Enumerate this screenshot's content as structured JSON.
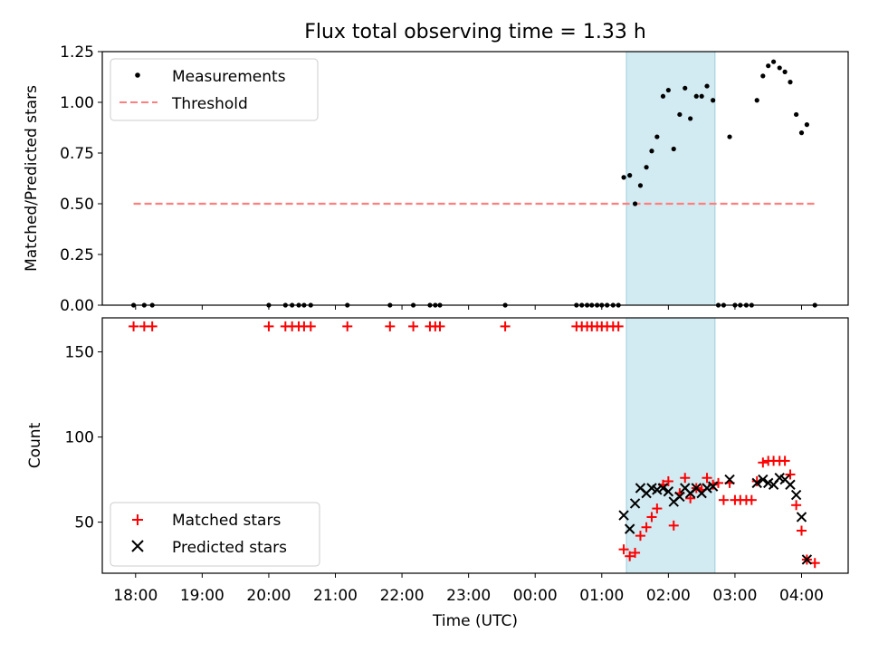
{
  "chart_data": [
    {
      "type": "scatter",
      "title": "Flux total observing time = 1.33 h",
      "xlabel": "",
      "ylabel": "Matched/Predicted stars",
      "ylim": [
        0,
        1.25
      ],
      "yticks": [
        "0.00",
        "0.25",
        "0.50",
        "0.75",
        "1.00",
        "1.25"
      ],
      "xlim_hours": [
        17.5,
        28.7
      ],
      "legend": {
        "placement": "top-left",
        "entries": [
          "Measurements",
          "Threshold"
        ]
      },
      "highlight_span_hours": [
        25.37,
        26.7
      ],
      "highlight_color": "#add8e6",
      "series": [
        {
          "name": "Measurements",
          "color": "#000000",
          "marker": "dot",
          "x": [
            17.97,
            18.13,
            18.25,
            20.0,
            20.25,
            20.35,
            20.45,
            20.53,
            20.63,
            21.18,
            21.82,
            22.17,
            22.42,
            22.5,
            22.57,
            23.55,
            24.62,
            24.7,
            24.78,
            24.85,
            24.93,
            25.0,
            25.08,
            25.17,
            25.25,
            25.33,
            25.42,
            25.5,
            25.58,
            25.67,
            25.75,
            25.83,
            25.92,
            26.0,
            26.08,
            26.17,
            26.25,
            26.33,
            26.42,
            26.5,
            26.58,
            26.67,
            26.75,
            26.83,
            26.92,
            27.0,
            27.08,
            27.17,
            27.25,
            27.33,
            27.42,
            27.5,
            27.58,
            27.67,
            27.75,
            27.83,
            27.92,
            28.0,
            28.08,
            28.2
          ],
          "y": [
            0,
            0,
            0,
            0,
            0,
            0,
            0,
            0,
            0,
            0,
            0,
            0,
            0,
            0,
            0,
            0,
            0,
            0,
            0,
            0,
            0,
            0,
            0,
            0,
            0,
            0.63,
            0.64,
            0.5,
            0.59,
            0.68,
            0.76,
            0.83,
            1.03,
            1.06,
            0.77,
            0.94,
            1.07,
            0.92,
            1.03,
            1.03,
            1.08,
            1.01,
            0,
            0,
            0.83,
            0,
            0,
            0,
            0,
            1.01,
            1.13,
            1.18,
            1.2,
            1.17,
            1.15,
            1.1,
            0.94,
            0.85,
            0.89,
            0
          ]
        },
        {
          "name": "Threshold",
          "color": "#ff7f7f",
          "style": "dashed",
          "x": [
            17.97,
            28.2
          ],
          "y": [
            0.5,
            0.5
          ]
        }
      ]
    },
    {
      "type": "scatter",
      "xlabel": "Time (UTC)",
      "ylabel": "Count",
      "ylim": [
        20,
        170
      ],
      "yticks": [
        "50",
        "100",
        "150"
      ],
      "xticks": [
        "18:00",
        "19:00",
        "20:00",
        "21:00",
        "22:00",
        "23:00",
        "00:00",
        "01:00",
        "02:00",
        "03:00",
        "04:00"
      ],
      "legend": {
        "placement": "bottom-left",
        "entries": [
          "Matched stars",
          "Predicted stars"
        ]
      },
      "highlight_span_hours": [
        25.37,
        26.7
      ],
      "series": [
        {
          "name": "Matched stars",
          "color": "#ff0000",
          "marker": "plus",
          "x": [
            17.97,
            18.13,
            18.25,
            20.0,
            20.25,
            20.35,
            20.45,
            20.53,
            20.63,
            21.18,
            21.82,
            22.17,
            22.42,
            22.5,
            22.57,
            23.55,
            24.62,
            24.7,
            24.78,
            24.85,
            24.93,
            25.0,
            25.08,
            25.17,
            25.25,
            25.33,
            25.42,
            25.5,
            25.58,
            25.67,
            25.75,
            25.83,
            25.92,
            26.0,
            26.08,
            26.17,
            26.25,
            26.33,
            26.42,
            26.5,
            26.58,
            26.67,
            26.75,
            26.83,
            26.92,
            27.0,
            27.08,
            27.17,
            27.25,
            27.33,
            27.42,
            27.5,
            27.58,
            27.67,
            27.75,
            27.83,
            27.92,
            28.0,
            28.08,
            28.2
          ],
          "y": [
            165,
            165,
            165,
            165,
            165,
            165,
            165,
            165,
            165,
            165,
            165,
            165,
            165,
            165,
            165,
            165,
            165,
            165,
            165,
            165,
            165,
            165,
            165,
            165,
            165,
            34,
            30,
            32,
            42,
            47,
            53,
            58,
            72,
            74,
            48,
            67,
            76,
            64,
            70,
            69,
            76,
            72,
            73,
            63,
            73,
            63,
            63,
            63,
            63,
            74,
            85,
            86,
            86,
            86,
            86,
            78,
            60,
            45,
            28,
            26
          ]
        },
        {
          "name": "Predicted stars",
          "color": "#000000",
          "marker": "x",
          "x": [
            25.33,
            25.42,
            25.5,
            25.58,
            25.67,
            25.75,
            25.83,
            25.92,
            26.0,
            26.08,
            26.17,
            26.25,
            26.33,
            26.42,
            26.5,
            26.58,
            26.67,
            26.92,
            27.33,
            27.42,
            27.5,
            27.58,
            27.67,
            27.75,
            27.83,
            27.92,
            28.0,
            28.08
          ],
          "y": [
            54,
            46,
            61,
            70,
            67,
            70,
            69,
            70,
            68,
            62,
            65,
            70,
            67,
            70,
            67,
            70,
            71,
            75,
            73,
            75,
            73,
            72,
            76,
            75,
            72,
            66,
            53,
            28
          ]
        }
      ]
    }
  ]
}
